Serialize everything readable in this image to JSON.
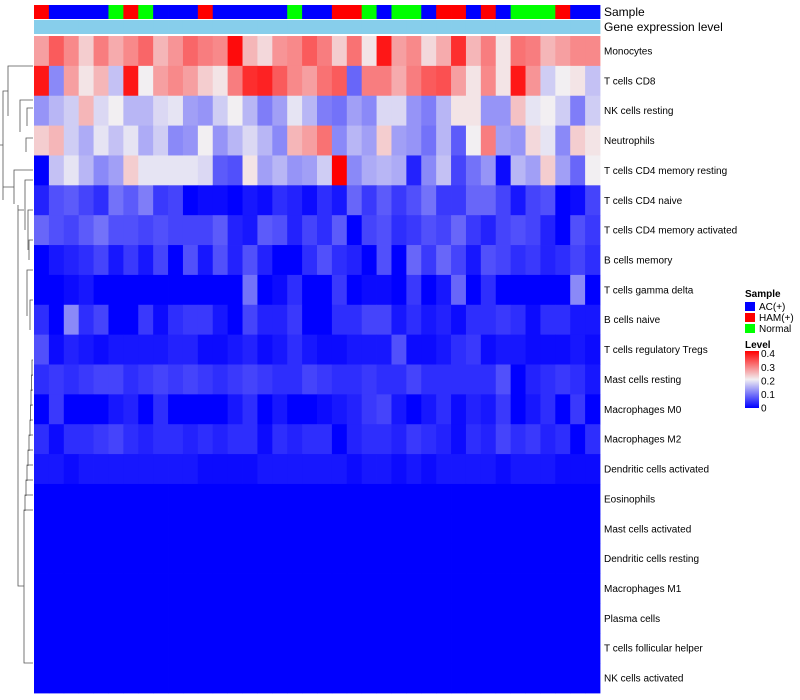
{
  "chart_data": {
    "type": "heatmap",
    "title": "",
    "annotation_rows": [
      {
        "label": "Sample"
      },
      {
        "label": "Gene expression level"
      }
    ],
    "sample_legend": {
      "title": "Sample",
      "entries": [
        {
          "name": "AC(+)",
          "color": "#0000ff"
        },
        {
          "name": "HAM(+)",
          "color": "#ff0000"
        },
        {
          "name": "Normal",
          "color": "#00ff00"
        }
      ]
    },
    "level_legend": {
      "title": "Level",
      "ticks": [
        "0.4",
        "0.3",
        "0.2",
        "0.1",
        "0"
      ],
      "tick_values": [
        0.4,
        0.3,
        0.2,
        0.1,
        0
      ],
      "range": [
        0,
        0.42
      ],
      "colors": {
        "low": "#0000ff",
        "mid": "#f2eff2",
        "high": "#ff0000",
        "mid_value": 0.21
      }
    },
    "gene_expression_color": "#87ceeb",
    "sample_groups": [
      "H",
      "A",
      "A",
      "A",
      "A",
      "N",
      "H",
      "N",
      "A",
      "A",
      "A",
      "H",
      "A",
      "A",
      "A",
      "A",
      "A",
      "N",
      "A",
      "A",
      "H",
      "H",
      "N",
      "A",
      "N",
      "N",
      "A",
      "H",
      "H",
      "A",
      "H",
      "A",
      "N",
      "N",
      "N",
      "H",
      "A",
      "A"
    ],
    "rows": [
      "Monocytes",
      "T cells CD8",
      "NK cells resting",
      "Neutrophils",
      "T cells CD4 memory resting",
      "T cells CD4 naive",
      "T cells CD4 memory activated",
      "B cells memory",
      "T cells gamma delta",
      "B cells naive",
      "T cells regulatory  Tregs",
      "Mast cells resting",
      "Macrophages M0",
      "Macrophages M2",
      "Dendritic cells activated",
      "Eosinophils",
      "Mast cells activated",
      "Dendritic cells resting",
      "Macrophages M1",
      "Plasma cells",
      "T cells follicular helper",
      "NK cells activated"
    ],
    "values": [
      [
        0.28,
        0.34,
        0.3,
        0.24,
        0.31,
        0.27,
        0.3,
        0.33,
        0.26,
        0.29,
        0.33,
        0.31,
        0.3,
        0.41,
        0.26,
        0.23,
        0.29,
        0.3,
        0.34,
        0.31,
        0.24,
        0.32,
        0.22,
        0.4,
        0.28,
        0.3,
        0.23,
        0.27,
        0.38,
        0.26,
        0.31,
        0.22,
        0.32,
        0.31,
        0.26,
        0.28,
        0.3,
        0.3
      ],
      [
        0.4,
        0.12,
        0.28,
        0.22,
        0.26,
        0.17,
        0.4,
        0.21,
        0.28,
        0.3,
        0.28,
        0.24,
        0.22,
        0.31,
        0.38,
        0.39,
        0.34,
        0.3,
        0.28,
        0.32,
        0.34,
        0.09,
        0.31,
        0.31,
        0.27,
        0.31,
        0.34,
        0.35,
        0.28,
        0.22,
        0.3,
        0.22,
        0.4,
        0.29,
        0.18,
        0.21,
        0.22,
        0.17
      ],
      [
        0.13,
        0.16,
        0.18,
        0.26,
        0.19,
        0.21,
        0.16,
        0.16,
        0.19,
        0.2,
        0.14,
        0.13,
        0.18,
        0.21,
        0.16,
        0.11,
        0.14,
        0.2,
        0.16,
        0.11,
        0.1,
        0.14,
        0.12,
        0.19,
        0.19,
        0.13,
        0.11,
        0.16,
        0.22,
        0.22,
        0.13,
        0.13,
        0.25,
        0.2,
        0.21,
        0.18,
        0.11,
        0.18
      ],
      [
        0.24,
        0.26,
        0.18,
        0.15,
        0.2,
        0.17,
        0.2,
        0.15,
        0.18,
        0.12,
        0.13,
        0.21,
        0.13,
        0.16,
        0.19,
        0.16,
        0.12,
        0.26,
        0.28,
        0.32,
        0.12,
        0.16,
        0.14,
        0.24,
        0.14,
        0.13,
        0.1,
        0.16,
        0.08,
        0.21,
        0.31,
        0.14,
        0.13,
        0.23,
        0.2,
        0.12,
        0.24,
        0.22
      ],
      [
        0.0,
        0.17,
        0.2,
        0.16,
        0.12,
        0.14,
        0.24,
        0.2,
        0.2,
        0.2,
        0.2,
        0.19,
        0.08,
        0.07,
        0.22,
        0.14,
        0.16,
        0.13,
        0.14,
        0.18,
        0.42,
        0.12,
        0.15,
        0.16,
        0.15,
        0.03,
        0.12,
        0.17,
        0.06,
        0.1,
        0.13,
        0.01,
        0.16,
        0.14,
        0.24,
        0.14,
        0.09,
        0.21
      ],
      [
        0.03,
        0.07,
        0.08,
        0.06,
        0.04,
        0.1,
        0.08,
        0.11,
        0.05,
        0.06,
        0.0,
        0.01,
        0.01,
        0.0,
        0.02,
        0.01,
        0.04,
        0.03,
        0.01,
        0.04,
        0.02,
        0.09,
        0.05,
        0.08,
        0.05,
        0.07,
        0.1,
        0.05,
        0.05,
        0.09,
        0.09,
        0.06,
        0.02,
        0.06,
        0.07,
        0.0,
        0.01,
        0.06
      ],
      [
        0.09,
        0.07,
        0.06,
        0.08,
        0.1,
        0.07,
        0.07,
        0.06,
        0.07,
        0.06,
        0.06,
        0.06,
        0.08,
        0.03,
        0.02,
        0.08,
        0.07,
        0.03,
        0.06,
        0.04,
        0.08,
        0.0,
        0.06,
        0.07,
        0.04,
        0.05,
        0.07,
        0.06,
        0.09,
        0.05,
        0.03,
        0.06,
        0.07,
        0.06,
        0.03,
        0.0,
        0.07,
        0.05
      ],
      [
        0.0,
        0.02,
        0.03,
        0.04,
        0.06,
        0.02,
        0.05,
        0.02,
        0.06,
        0.0,
        0.07,
        0.02,
        0.07,
        0.03,
        0.07,
        0.03,
        0.0,
        0.0,
        0.04,
        0.07,
        0.04,
        0.03,
        0.0,
        0.07,
        0.0,
        0.09,
        0.05,
        0.09,
        0.06,
        0.02,
        0.07,
        0.06,
        0.04,
        0.05,
        0.03,
        0.04,
        0.06,
        0.04
      ],
      [
        0.0,
        0.0,
        0.01,
        0.02,
        0.0,
        0.0,
        0.0,
        0.0,
        0.0,
        0.0,
        0.0,
        0.0,
        0.0,
        0.0,
        0.1,
        0.0,
        0.01,
        0.04,
        0.0,
        0.0,
        0.05,
        0.0,
        0.01,
        0.01,
        0.0,
        0.05,
        0.0,
        0.02,
        0.09,
        0.0,
        0.04,
        0.0,
        0.0,
        0.0,
        0.0,
        0.0,
        0.12,
        0.0
      ],
      [
        0.04,
        0.0,
        0.12,
        0.04,
        0.06,
        0.0,
        0.0,
        0.05,
        0.01,
        0.04,
        0.05,
        0.05,
        0.02,
        0.0,
        0.06,
        0.03,
        0.03,
        0.05,
        0.0,
        0.0,
        0.04,
        0.04,
        0.06,
        0.06,
        0.02,
        0.04,
        0.02,
        0.03,
        0.01,
        0.04,
        0.04,
        0.05,
        0.04,
        0.01,
        0.04,
        0.04,
        0.02,
        0.02
      ],
      [
        0.07,
        0.01,
        0.03,
        0.02,
        0.01,
        0.02,
        0.02,
        0.02,
        0.02,
        0.03,
        0.03,
        0.01,
        0.01,
        0.02,
        0.03,
        0.01,
        0.02,
        0.04,
        0.02,
        0.01,
        0.01,
        0.02,
        0.02,
        0.02,
        0.07,
        0.01,
        0.01,
        0.02,
        0.04,
        0.05,
        0.01,
        0.02,
        0.02,
        0.01,
        0.01,
        0.01,
        0.02,
        0.01
      ],
      [
        0.04,
        0.05,
        0.04,
        0.05,
        0.06,
        0.06,
        0.04,
        0.05,
        0.06,
        0.05,
        0.06,
        0.05,
        0.04,
        0.05,
        0.06,
        0.05,
        0.04,
        0.04,
        0.06,
        0.05,
        0.04,
        0.04,
        0.05,
        0.04,
        0.04,
        0.06,
        0.04,
        0.04,
        0.04,
        0.04,
        0.04,
        0.07,
        0.0,
        0.03,
        0.04,
        0.05,
        0.04,
        0.02
      ],
      [
        0.0,
        0.05,
        0.0,
        0.0,
        0.0,
        0.02,
        0.03,
        0.0,
        0.04,
        0.0,
        0.0,
        0.0,
        0.0,
        0.02,
        0.04,
        0.0,
        0.02,
        0.0,
        0.0,
        0.01,
        0.02,
        0.03,
        0.05,
        0.06,
        0.02,
        0.0,
        0.02,
        0.04,
        0.01,
        0.03,
        0.02,
        0.05,
        0.0,
        0.02,
        0.04,
        0.0,
        0.05,
        0.0
      ],
      [
        0.04,
        0.01,
        0.04,
        0.04,
        0.05,
        0.06,
        0.04,
        0.03,
        0.04,
        0.04,
        0.03,
        0.04,
        0.03,
        0.04,
        0.04,
        0.01,
        0.04,
        0.03,
        0.04,
        0.04,
        0.0,
        0.03,
        0.04,
        0.04,
        0.03,
        0.05,
        0.04,
        0.03,
        0.01,
        0.04,
        0.03,
        0.06,
        0.04,
        0.05,
        0.03,
        0.04,
        0.0,
        0.04
      ],
      [
        0.02,
        0.02,
        0.01,
        0.02,
        0.02,
        0.02,
        0.02,
        0.02,
        0.02,
        0.02,
        0.02,
        0.01,
        0.01,
        0.01,
        0.01,
        0.02,
        0.02,
        0.02,
        0.02,
        0.02,
        0.02,
        0.01,
        0.02,
        0.02,
        0.01,
        0.02,
        0.01,
        0.02,
        0.02,
        0.02,
        0.02,
        0.01,
        0.02,
        0.02,
        0.02,
        0.01,
        0.01,
        0.01
      ],
      [
        0.0,
        0.0,
        0.0,
        0.0,
        0.0,
        0.0,
        0.0,
        0.0,
        0.0,
        0.0,
        0.0,
        0.0,
        0.0,
        0.0,
        0.0,
        0.0,
        0.0,
        0.0,
        0.0,
        0.0,
        0.0,
        0.0,
        0.0,
        0.0,
        0.0,
        0.0,
        0.0,
        0.0,
        0.0,
        0.0,
        0.0,
        0.0,
        0.0,
        0.0,
        0.0,
        0.0,
        0.0,
        0.0
      ],
      [
        0.0,
        0.0,
        0.0,
        0.0,
        0.0,
        0.0,
        0.0,
        0.0,
        0.0,
        0.0,
        0.0,
        0.0,
        0.0,
        0.0,
        0.0,
        0.0,
        0.0,
        0.0,
        0.0,
        0.0,
        0.0,
        0.0,
        0.0,
        0.0,
        0.0,
        0.0,
        0.0,
        0.0,
        0.0,
        0.0,
        0.0,
        0.0,
        0.0,
        0.0,
        0.0,
        0.0,
        0.0,
        0.0
      ],
      [
        0.0,
        0.0,
        0.0,
        0.0,
        0.0,
        0.0,
        0.0,
        0.0,
        0.0,
        0.0,
        0.0,
        0.0,
        0.0,
        0.0,
        0.0,
        0.0,
        0.0,
        0.0,
        0.0,
        0.0,
        0.0,
        0.0,
        0.0,
        0.0,
        0.0,
        0.0,
        0.0,
        0.0,
        0.0,
        0.0,
        0.0,
        0.0,
        0.0,
        0.0,
        0.0,
        0.0,
        0.0,
        0.0
      ],
      [
        0.0,
        0.0,
        0.0,
        0.0,
        0.0,
        0.0,
        0.0,
        0.0,
        0.0,
        0.0,
        0.0,
        0.0,
        0.0,
        0.0,
        0.0,
        0.0,
        0.0,
        0.0,
        0.0,
        0.0,
        0.0,
        0.0,
        0.0,
        0.0,
        0.0,
        0.0,
        0.0,
        0.0,
        0.0,
        0.0,
        0.0,
        0.0,
        0.0,
        0.0,
        0.0,
        0.0,
        0.0,
        0.0
      ],
      [
        0.0,
        0.0,
        0.0,
        0.0,
        0.0,
        0.0,
        0.0,
        0.0,
        0.0,
        0.0,
        0.0,
        0.0,
        0.0,
        0.0,
        0.0,
        0.0,
        0.0,
        0.0,
        0.0,
        0.0,
        0.0,
        0.0,
        0.0,
        0.0,
        0.0,
        0.0,
        0.0,
        0.0,
        0.0,
        0.0,
        0.0,
        0.0,
        0.0,
        0.0,
        0.0,
        0.0,
        0.0,
        0.0
      ],
      [
        0.0,
        0.0,
        0.0,
        0.0,
        0.0,
        0.0,
        0.0,
        0.0,
        0.0,
        0.0,
        0.0,
        0.0,
        0.0,
        0.0,
        0.0,
        0.0,
        0.0,
        0.0,
        0.0,
        0.0,
        0.0,
        0.0,
        0.0,
        0.0,
        0.0,
        0.0,
        0.0,
        0.0,
        0.0,
        0.0,
        0.0,
        0.0,
        0.0,
        0.0,
        0.0,
        0.0,
        0.0,
        0.0
      ],
      [
        0.0,
        0.0,
        0.0,
        0.0,
        0.0,
        0.0,
        0.0,
        0.0,
        0.0,
        0.0,
        0.0,
        0.0,
        0.0,
        0.0,
        0.0,
        0.0,
        0.0,
        0.0,
        0.0,
        0.0,
        0.0,
        0.0,
        0.0,
        0.0,
        0.0,
        0.0,
        0.0,
        0.0,
        0.0,
        0.0,
        0.0,
        0.0,
        0.0,
        0.0,
        0.0,
        0.0,
        0.0,
        0.0
      ]
    ]
  }
}
